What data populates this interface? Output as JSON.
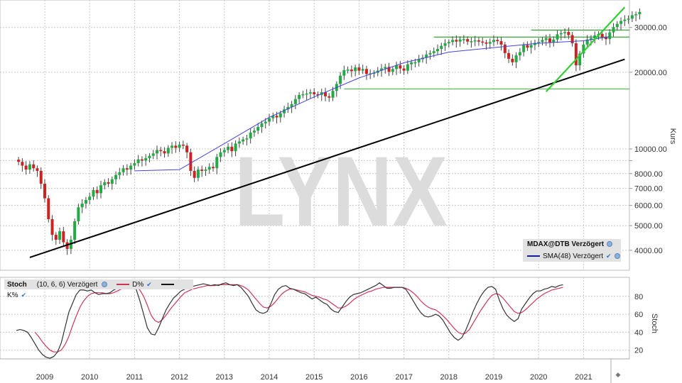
{
  "chart_data": [
    {
      "type": "candlestick",
      "title": "MDAX@DTB Verzögert",
      "ylabel": "Kurs",
      "yscale": "log",
      "ylim": [
        3500,
        36000
      ],
      "yticks": [
        4000,
        5000,
        6000,
        7000,
        8000,
        10000,
        20000,
        30000
      ],
      "ytick_labels": [
        "4000.00",
        "5000.00",
        "6000.00",
        "7000.00",
        "8000.00",
        "10000.00",
        "20000.00",
        "30000.00"
      ],
      "xticks": [
        "2009",
        "2010",
        "2011",
        "2012",
        "2013",
        "2014",
        "2015",
        "2016",
        "2017",
        "2018",
        "2019",
        "2020",
        "2021"
      ],
      "grid": true,
      "watermark": "LYNX",
      "legend": [
        "MDAX@DTB Verzögert",
        "SMA(48) Verzögert"
      ],
      "legend_position": "lower right",
      "monthly_close_approx": {
        "start": "2008-06",
        "values": [
          8900,
          8600,
          8300,
          8700,
          8400,
          8200,
          7300,
          6400,
          5300,
          4600,
          4400,
          4750,
          4300,
          4050,
          4400,
          5200,
          5900,
          6100,
          6300,
          6500,
          6900,
          6700,
          7200,
          7400,
          7300,
          7600,
          7900,
          8100,
          8400,
          8300,
          8600,
          8800,
          9100,
          9000,
          9200,
          9400,
          9600,
          9900,
          9800,
          9600,
          10100,
          10300,
          10100,
          10400,
          10300,
          9700,
          8200,
          7700,
          8300,
          8200,
          8300,
          8500,
          8400,
          9300,
          9700,
          9900,
          10200,
          9800,
          10500,
          10700,
          10900,
          11000,
          11600,
          11800,
          12200,
          12600,
          12800,
          13200,
          13500,
          13300,
          13800,
          14300,
          14600,
          15000,
          15700,
          16300,
          16400,
          16500,
          16700,
          16400,
          16300,
          16700,
          16100,
          15900,
          16900,
          18000,
          19400,
          20400,
          20500,
          20200,
          20900,
          20300,
          20600,
          19700,
          19800,
          19900,
          20300,
          20700,
          21000,
          20100,
          20600,
          21300,
          20700,
          20300,
          21500,
          21900,
          21900,
          22500,
          22800,
          23500,
          23800,
          24200,
          24700,
          25400,
          26000,
          26300,
          26800,
          26400,
          26900,
          27000,
          26400,
          26500,
          26700,
          26400,
          26200,
          25900,
          26300,
          26800,
          26500,
          25700,
          23800,
          22600,
          21900,
          23300,
          24000,
          25600,
          25000,
          25600,
          26100,
          26300,
          26800,
          27200,
          26200,
          26900,
          28200,
          28500,
          28800,
          28000,
          26000,
          21300,
          23700,
          25700,
          26900,
          27200,
          27900,
          28300,
          27500,
          27000,
          28700,
          30100,
          31000,
          31800,
          32200,
          32500,
          33500,
          33800,
          34500
        ],
        "note": "approximate monthly closes read from log axis"
      },
      "sma48": {
        "label": "SMA(48) Verzögert",
        "color": "#3333cc",
        "points_approx": [
          [
            "2011-01",
            8200
          ],
          [
            "2012-01",
            8300
          ],
          [
            "2013-01",
            10500
          ],
          [
            "2014-01",
            13300
          ],
          [
            "2015-01",
            16000
          ],
          [
            "2016-01",
            19000
          ],
          [
            "2017-01",
            21800
          ],
          [
            "2018-01",
            24000
          ],
          [
            "2019-01",
            25000
          ],
          [
            "2020-01",
            26000
          ],
          [
            "2021-01",
            26600
          ],
          [
            "2021-08",
            27600
          ]
        ]
      },
      "trendlines": [
        {
          "name": "long-term support",
          "color": "#000000",
          "from": [
            "2008-09",
            3750
          ],
          "to": [
            "2021-12",
            22500
          ]
        },
        {
          "name": "short-term support",
          "color": "#33cc33",
          "from": [
            "2020-03",
            16800
          ],
          "to": [
            "2021-12",
            36000
          ]
        }
      ],
      "horizontal_lines": [
        {
          "value": 17200,
          "color": "#66bb66",
          "from": "2015-09"
        },
        {
          "value": 27500,
          "color": "#33aa33",
          "from": "2017-09"
        },
        {
          "value": 29300,
          "color": "#33aa33",
          "from": "2019-11"
        }
      ]
    },
    {
      "type": "line",
      "title": "Stoch (10, 6, 6) Verzögert",
      "ylabel": "Stoch",
      "ylim": [
        0,
        100
      ],
      "yticks": [
        20,
        40,
        60,
        80
      ],
      "series": [
        {
          "name": "K%",
          "color": "#222222",
          "values": [
            42,
            43,
            42,
            40,
            34,
            27,
            20,
            15,
            12,
            11,
            13,
            18,
            28,
            45,
            62,
            72,
            82,
            87,
            87,
            86,
            87,
            84,
            82,
            83,
            83,
            84,
            87,
            89,
            91,
            93,
            94,
            92,
            88,
            75,
            60,
            45,
            38,
            37,
            45,
            55,
            65,
            72,
            78,
            82,
            86,
            88,
            90,
            91,
            92,
            93,
            94,
            93,
            92,
            93,
            92,
            94,
            95,
            93,
            92,
            93,
            90,
            85,
            80,
            72,
            65,
            62,
            61,
            63,
            72,
            82,
            88,
            91,
            92,
            89,
            88,
            86,
            84,
            83,
            80,
            77,
            79,
            76,
            73,
            71,
            66,
            63,
            62,
            68,
            74,
            79,
            82,
            83,
            84,
            86,
            88,
            90,
            92,
            95,
            92,
            89,
            89,
            90,
            90,
            90,
            88,
            82,
            75,
            68,
            62,
            58,
            57,
            58,
            60,
            58,
            53,
            46,
            39,
            34,
            31,
            34,
            42,
            52,
            63,
            72,
            80,
            86,
            90,
            91,
            88,
            76,
            66,
            59,
            55,
            52,
            55,
            66,
            72,
            78,
            83,
            86,
            86,
            88,
            89,
            91,
            90,
            92,
            93
          ]
        },
        {
          "name": "D%",
          "color": "#cc3355",
          "values": [
            null,
            null,
            null,
            null,
            null,
            40,
            35,
            29,
            24,
            20,
            18,
            18,
            20,
            26,
            35,
            47,
            58,
            68,
            75,
            80,
            83,
            84,
            84,
            84,
            83,
            83,
            84,
            86,
            88,
            90,
            92,
            92,
            91,
            87,
            80,
            70,
            59,
            53,
            51,
            54,
            59,
            65,
            70,
            75,
            80,
            84,
            86,
            88,
            89,
            90,
            91,
            92,
            92,
            92,
            93,
            93,
            93,
            93,
            93,
            93,
            92,
            90,
            87,
            82,
            77,
            72,
            68,
            67,
            69,
            73,
            78,
            83,
            86,
            88,
            88,
            87,
            86,
            85,
            83,
            81,
            80,
            79,
            77,
            76,
            73,
            70,
            67,
            67,
            69,
            72,
            76,
            79,
            81,
            83,
            85,
            86,
            88,
            89,
            90,
            90,
            90,
            90,
            90,
            90,
            89,
            87,
            84,
            80,
            75,
            71,
            68,
            66,
            65,
            62,
            58,
            54,
            49,
            44,
            40,
            38,
            39,
            43,
            50,
            57,
            64,
            70,
            76,
            81,
            83,
            82,
            78,
            73,
            68,
            63,
            61,
            62,
            65,
            69,
            73,
            77,
            80,
            83,
            85,
            87,
            88,
            89,
            90
          ]
        }
      ]
    }
  ],
  "price_panel": {
    "legend_title": "MDAX@DTB Verzögert",
    "legend_sma": "SMA(48) Verzögert",
    "axis_title": "Kurs",
    "watermark": "LYNX"
  },
  "stoch_panel": {
    "legend_title": "Stoch",
    "legend_params": "(10, 6, 6) Verzögert",
    "legend_d": "D%",
    "legend_k": "K%",
    "axis_title": "Stoch"
  },
  "colors": {
    "up_candle": "#22aa44",
    "down_candle": "#cc2222",
    "sma": "#3333cc",
    "long_trend": "#000000",
    "short_trend": "#33cc33",
    "hline": "#33aa33",
    "grid": "#c8c8c8",
    "watermark": "#dcdcdc",
    "legend_bg": "#e2e2e2",
    "k_line": "#222222",
    "d_line": "#cc3355"
  },
  "scroll": {
    "label": "◆"
  }
}
